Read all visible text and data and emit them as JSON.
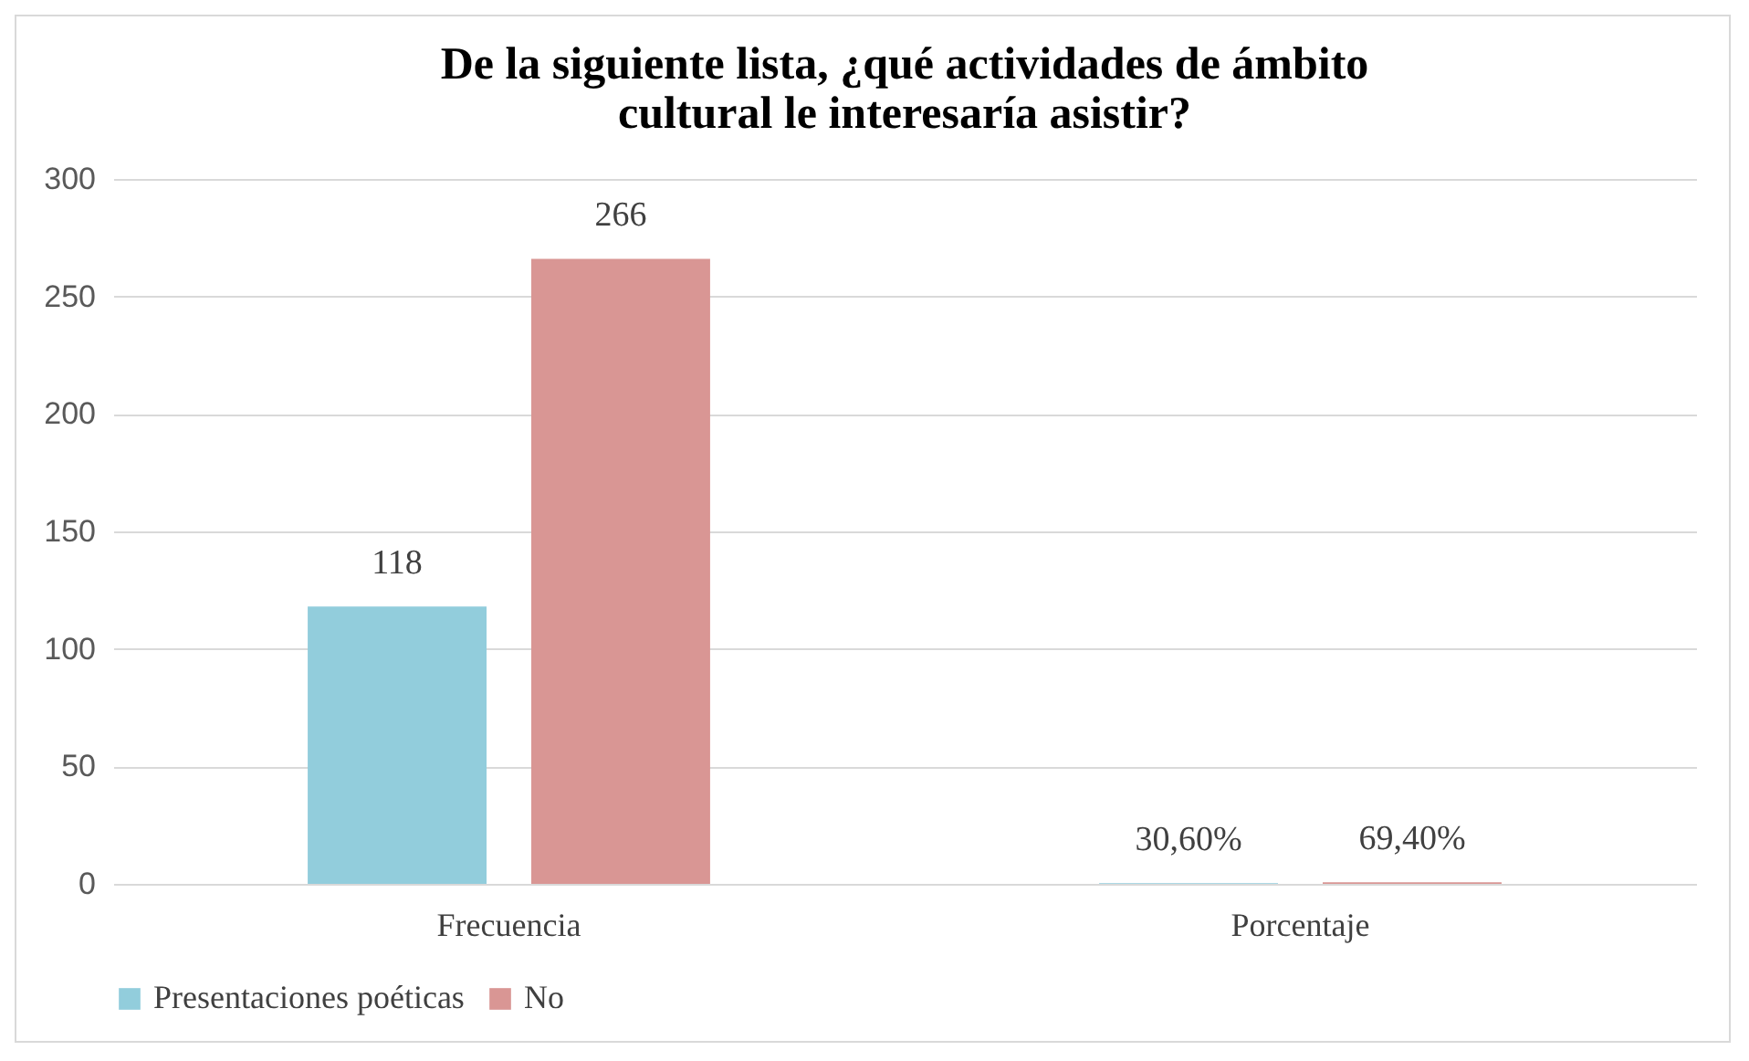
{
  "chart_data": {
    "type": "bar",
    "title": "De la siguiente lista, ¿qué actividades de ámbito cultural le interesaría asistir?",
    "categories": [
      "Frecuencia",
      "Porcentaje"
    ],
    "series": [
      {
        "name": "Presentaciones poéticas",
        "color": "#92cddc",
        "values": [
          118,
          0.306
        ],
        "value_labels": [
          "118",
          "30,60%"
        ]
      },
      {
        "name": "No",
        "color": "#d99694",
        "values": [
          266,
          0.694
        ],
        "value_labels": [
          "266",
          "69,40%"
        ]
      }
    ],
    "ylim": [
      0,
      300
    ],
    "yticks": [
      0,
      50,
      100,
      150,
      200,
      250,
      300
    ],
    "grid": "y",
    "legend": "bottom"
  }
}
